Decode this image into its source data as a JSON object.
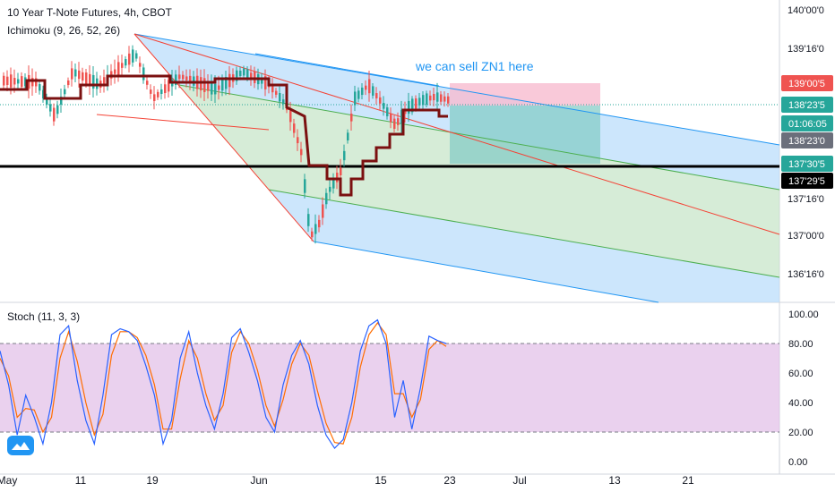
{
  "header": {
    "title": "10 Year T-Note Futures, 4h, CBOT",
    "indicator": "Ichimoku (9, 26, 52, 26)",
    "annotation": "we can sell ZN1 here"
  },
  "stoch": {
    "label": "Stoch (11, 3, 3)"
  },
  "colors": {
    "candle_up": "#26a69a",
    "candle_down": "#ef5350",
    "ichimoku": "#7b1010",
    "channel_blue": "#2196f3",
    "channel_green": "#4caf50",
    "median_red": "#f44336",
    "stoch_band": "#e1bee7",
    "annotation": "#2196f3"
  },
  "chart_data": [
    {
      "type": "candlestick",
      "title": "10 Year T-Note Futures, 4h, CBOT",
      "x_ticks": [
        "May",
        "11",
        "19",
        "Jun",
        "15",
        "23",
        "Jul",
        "13",
        "21"
      ],
      "y_ticks": [
        "140'00'0",
        "139'16'0",
        "137'16'0",
        "137'00'0",
        "136'16'0"
      ],
      "price_labels": [
        {
          "text": "139'00'5",
          "color": "#ef5350"
        },
        {
          "text": "138'23'5",
          "color": "#26a69a"
        },
        {
          "text": "01:06:05",
          "color": "#26a69a"
        },
        {
          "text": "138'23'0",
          "color": "#6b6f7b"
        },
        {
          "text": "137'30'5",
          "color": "#26a69a"
        },
        {
          "text": "137'29'5",
          "color": "#000000"
        }
      ],
      "horizontal_line": "137'29'5",
      "pitchfork": "descending Andrews pitchfork drawn from the May 19 high",
      "position_tool": "short position from Jun 23 to Jul 11",
      "series": [
        {
          "name": "Ichimoku (9, 26, 52, 26)",
          "color": "#7b1010"
        }
      ]
    },
    {
      "type": "line",
      "title": "Stoch (11, 3, 3)",
      "y_ticks": [
        "100.00",
        "80.00",
        "60.00",
        "40.00",
        "20.00",
        "0.00"
      ],
      "ylim": [
        0,
        100
      ],
      "bands": [
        20,
        80
      ],
      "k_values": [
        75,
        52,
        18,
        45,
        30,
        12,
        40,
        86,
        92,
        55,
        28,
        12,
        45,
        86,
        90,
        88,
        82,
        65,
        45,
        12,
        28,
        70,
        88,
        60,
        38,
        22,
        46,
        84,
        90,
        74,
        55,
        30,
        20,
        52,
        72,
        82,
        66,
        38,
        18,
        9,
        15,
        40,
        75,
        92,
        96,
        80,
        30,
        55,
        22,
        50,
        85,
        82,
        80
      ],
      "d_values": [
        70,
        58,
        30,
        36,
        35,
        20,
        30,
        70,
        88,
        68,
        40,
        18,
        32,
        72,
        88,
        88,
        84,
        72,
        52,
        22,
        22,
        56,
        82,
        70,
        46,
        28,
        38,
        74,
        88,
        80,
        62,
        38,
        24,
        42,
        66,
        80,
        72,
        48,
        26,
        13,
        12,
        30,
        64,
        86,
        94,
        86,
        46,
        46,
        30,
        42,
        76,
        82,
        78
      ]
    }
  ]
}
